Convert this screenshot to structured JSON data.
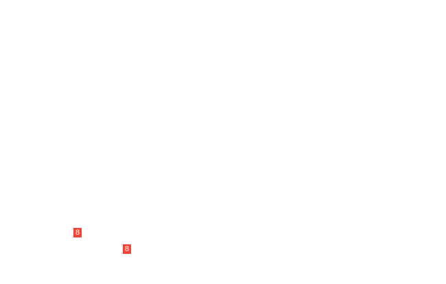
{
  "badges": [
    {
      "label": "8",
      "color": "#f44336"
    },
    {
      "label": "8",
      "color": "#f44336"
    }
  ]
}
